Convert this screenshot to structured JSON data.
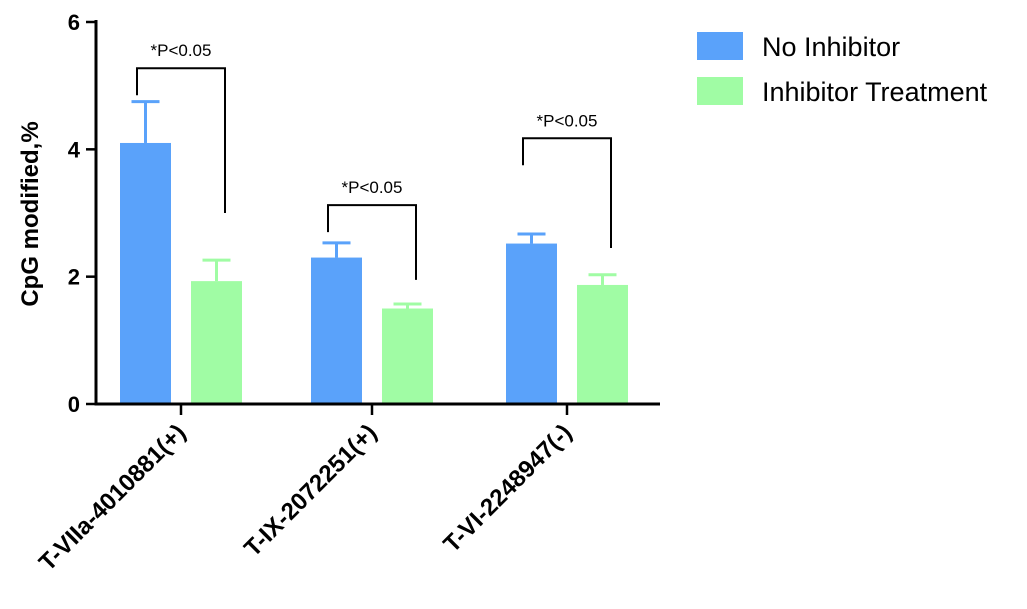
{
  "chart_data": {
    "type": "bar",
    "title": "",
    "xlabel": "",
    "ylabel": "CpG modified,%",
    "ylim": [
      0,
      6
    ],
    "yticks": [
      "0",
      "2",
      "4",
      "6"
    ],
    "categories": [
      "T-VIIa-4010881(+)",
      "T-IX-2072251(+)",
      "T-VI-2248947(-)"
    ],
    "series": [
      {
        "name": "No Inhibitor",
        "color": "#5aa2fa",
        "values": [
          4.1,
          2.3,
          2.52
        ],
        "errors": [
          0.65,
          0.23,
          0.15
        ]
      },
      {
        "name": "Inhibitor Treatment",
        "color": "#a0fca4",
        "values": [
          1.93,
          1.5,
          1.87
        ],
        "errors": [
          0.33,
          0.07,
          0.16
        ]
      }
    ],
    "annotations": [
      {
        "text": "*P<0.05",
        "category": 0,
        "left_value": 4.85,
        "right_value": 3.0
      },
      {
        "text": "*P<0.05",
        "category": 1,
        "left_value": 2.7,
        "right_value": 1.95
      },
      {
        "text": "*P<0.05",
        "category": 2,
        "left_value": 3.75,
        "right_value": 2.45
      }
    ],
    "legend_position": "top-right",
    "grid": false
  }
}
